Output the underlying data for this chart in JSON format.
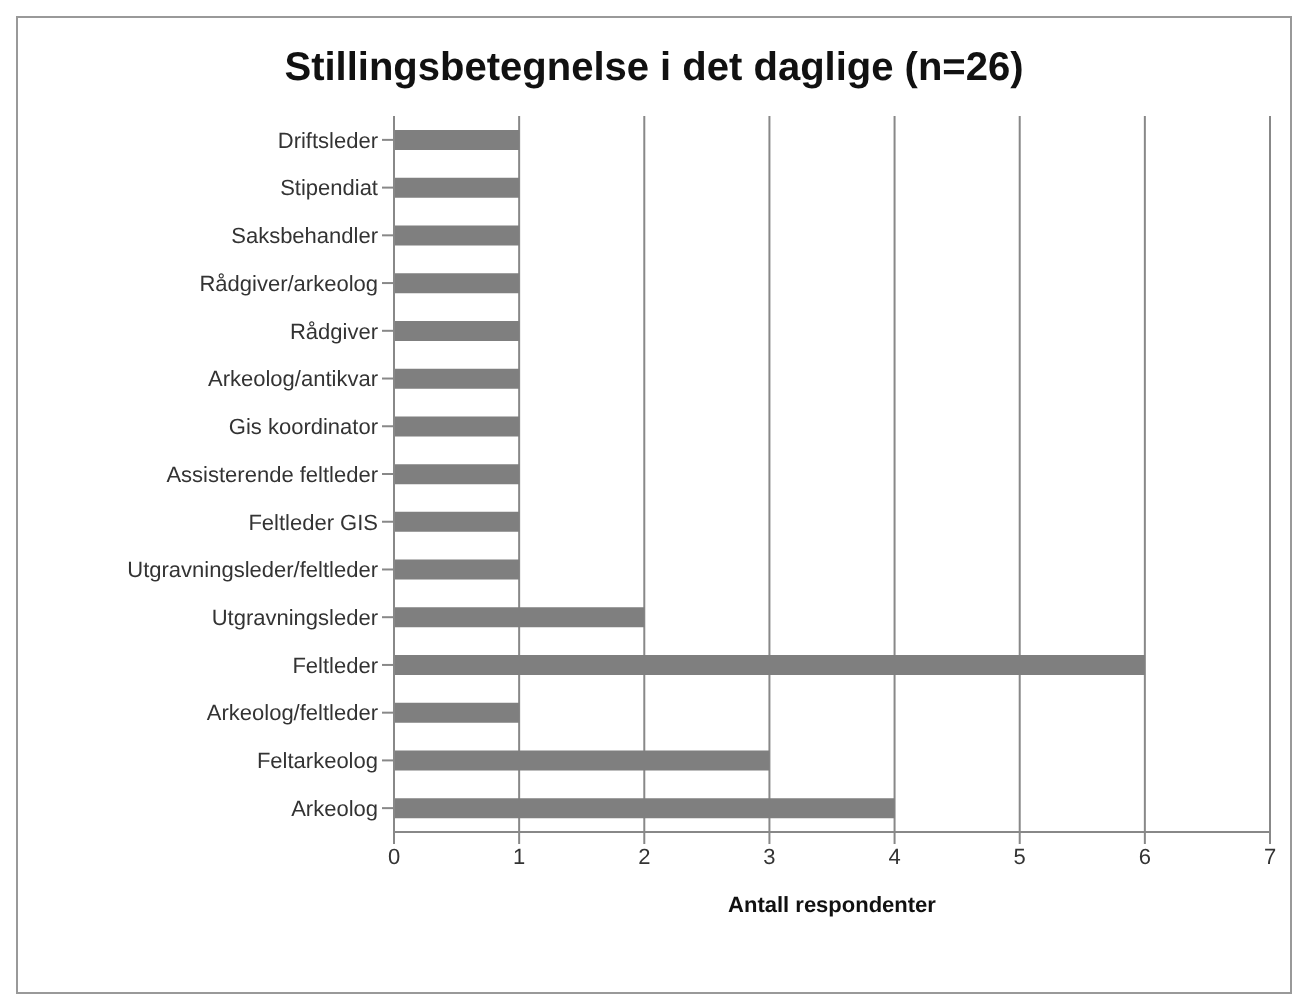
{
  "chart_data": {
    "type": "bar",
    "orientation": "horizontal",
    "title": "Stillingsbetegnelse i det daglige (n=26)",
    "xlabel": "Antall respondenter",
    "categories": [
      "Driftsleder",
      "Stipendiat",
      "Saksbehandler",
      "Rådgiver/arkeolog",
      "Rådgiver",
      "Arkeolog/antikvar",
      "Gis koordinator",
      "Assisterende feltleder",
      "Feltleder GIS",
      "Utgravningsleder/feltleder",
      "Utgravningsleder",
      "Feltleder",
      "Arkeolog/feltleder",
      "Feltarkeolog",
      "Arkeolog"
    ],
    "values": [
      1,
      1,
      1,
      1,
      1,
      1,
      1,
      1,
      1,
      1,
      2,
      6,
      1,
      3,
      4
    ],
    "color": "#7f7f7f",
    "xlim": [
      0,
      7
    ],
    "xticks": [
      0,
      1,
      2,
      3,
      4,
      5,
      6,
      7
    ],
    "grid": "x",
    "legend": false
  }
}
